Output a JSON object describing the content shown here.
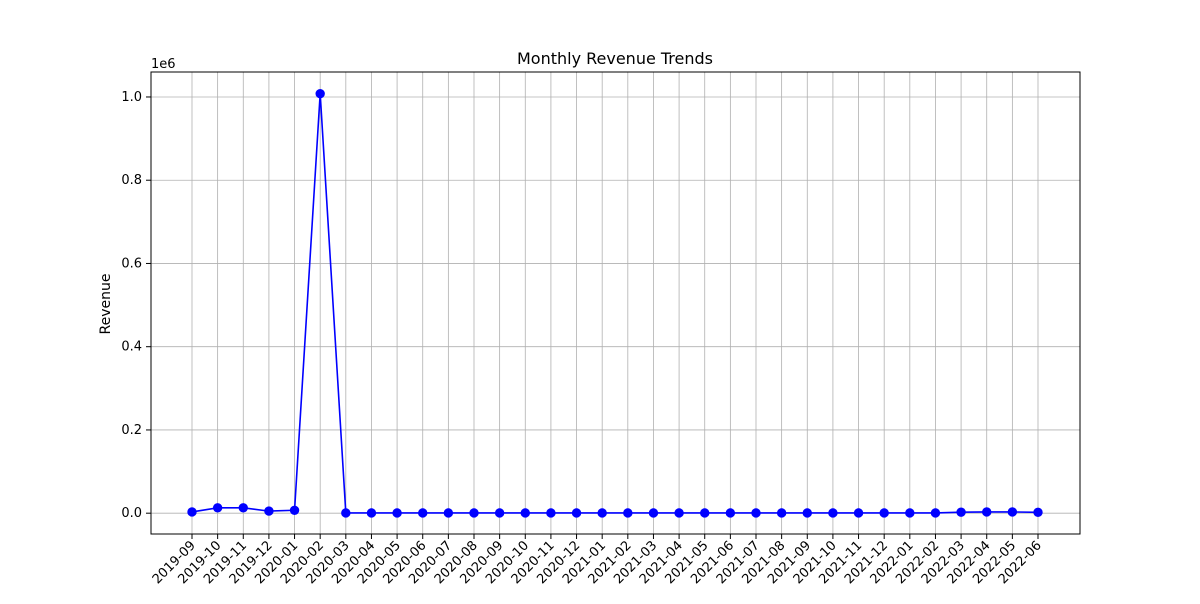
{
  "chart_data": {
    "type": "line",
    "title": "Monthly Revenue Trends",
    "xlabel": "",
    "ylabel": "Revenue",
    "y_scale_label": "1e6",
    "ylim": [
      -0.05,
      1.06
    ],
    "y_scale": 1000000,
    "y_ticks": [
      0.0,
      0.2,
      0.4,
      0.6,
      0.8,
      1.0
    ],
    "y_tick_labels": [
      "0.0",
      "0.2",
      "0.4",
      "0.6",
      "0.8",
      "1.0"
    ],
    "grid": true,
    "legend": "none",
    "categories": [
      "2019-09",
      "2019-10",
      "2019-11",
      "2019-12",
      "2020-01",
      "2020-02",
      "2020-03",
      "2020-04",
      "2020-05",
      "2020-06",
      "2020-07",
      "2020-08",
      "2020-09",
      "2020-10",
      "2020-11",
      "2020-12",
      "2021-01",
      "2021-02",
      "2021-03",
      "2021-04",
      "2021-05",
      "2021-06",
      "2021-07",
      "2021-08",
      "2021-09",
      "2021-10",
      "2021-11",
      "2021-12",
      "2022-01",
      "2022-02",
      "2022-03",
      "2022-04",
      "2022-05",
      "2022-06"
    ],
    "series": [
      {
        "color": "#0000ff",
        "values": [
          3000,
          13000,
          13000,
          5000,
          7000,
          1008000,
          500,
          500,
          500,
          500,
          500,
          500,
          500,
          500,
          500,
          500,
          500,
          500,
          500,
          500,
          500,
          500,
          500,
          500,
          500,
          500,
          500,
          500,
          500,
          500,
          2500,
          3000,
          3000,
          2000
        ]
      }
    ]
  }
}
